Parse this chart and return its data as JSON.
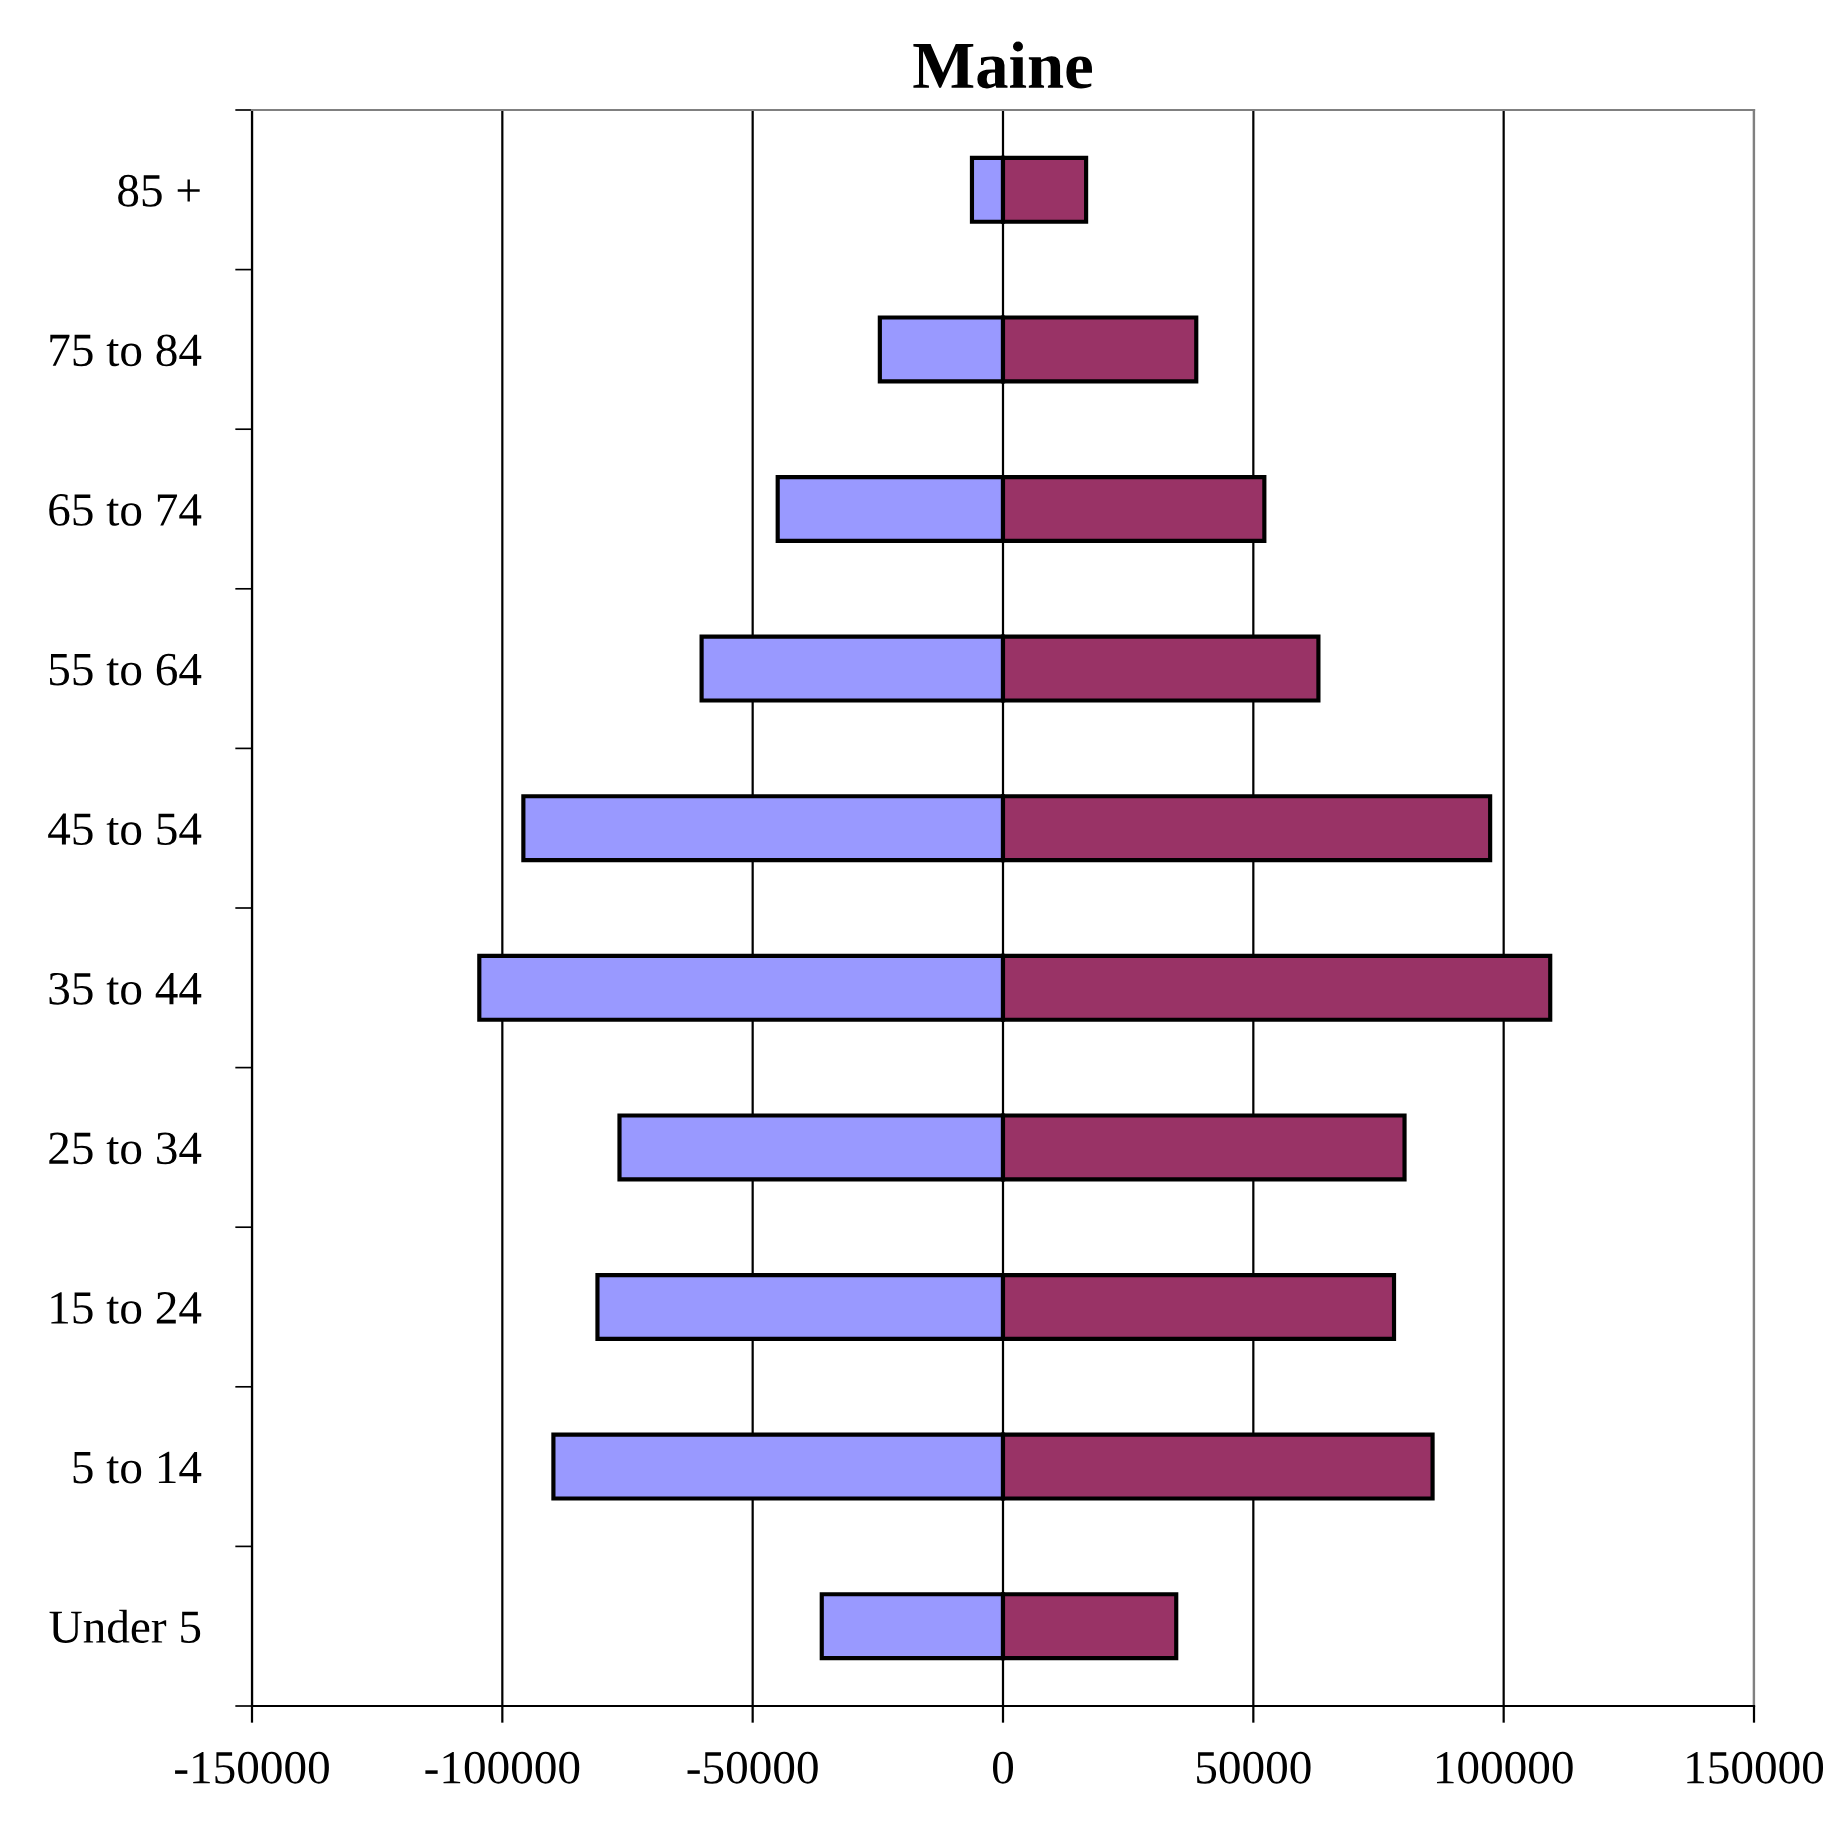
{
  "chart_data": {
    "type": "bar",
    "orientation": "horizontal",
    "title": "Maine",
    "categories": [
      "85 +",
      "75 to 84",
      "65 to 74",
      "55 to 64",
      "45 to 54",
      "35 to 44",
      "25 to 34",
      "15 to 24",
      "5 to 14",
      "Under 5"
    ],
    "series": [
      {
        "color": "#9999ff",
        "values": [
          -6200,
          -24600,
          -45000,
          -60200,
          -95800,
          -104600,
          -76600,
          -81000,
          -89800,
          -36200
        ]
      },
      {
        "color": "#993366",
        "values": [
          16600,
          38600,
          52200,
          63000,
          97300,
          109300,
          80200,
          78100,
          85800,
          34600
        ]
      }
    ],
    "xlim": [
      -150000,
      150000
    ],
    "xticks": [
      -150000,
      -100000,
      -50000,
      0,
      50000,
      100000,
      150000
    ],
    "stacked": true,
    "grid": "x",
    "legend": false
  }
}
